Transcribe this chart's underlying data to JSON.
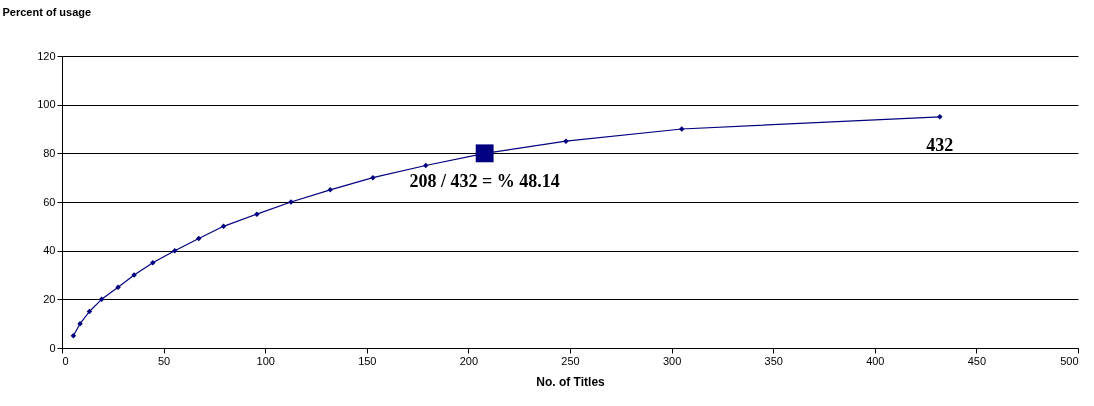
{
  "chart_data": {
    "type": "line",
    "xlabel": "No. of Titles",
    "ylabel": "Percent of usage",
    "series": [
      {
        "color": "#000080",
        "marker": "diamond",
        "x": [
          5.6,
          8.9,
          13.5,
          19.5,
          27.6,
          35.5,
          44.7,
          55.5,
          67.3,
          79.5,
          95.9,
          112.7,
          132,
          153,
          179,
          208,
          248,
          305,
          432
        ],
        "values": [
          5,
          10,
          15,
          20,
          25,
          30,
          35,
          40,
          45,
          50,
          55,
          60,
          65,
          70,
          75,
          80,
          85,
          90,
          95
        ]
      },
      {
        "type": "scatter",
        "color": "#000080",
        "marker": "square",
        "x": [
          208
        ],
        "values": [
          80
        ]
      }
    ],
    "xlim": [
      0,
      500
    ],
    "xticks": [
      0,
      50,
      100,
      150,
      200,
      250,
      300,
      350,
      400,
      450,
      500
    ],
    "ylim": [
      0,
      120
    ],
    "yticks": [
      0,
      20,
      40,
      60,
      80,
      100,
      120
    ],
    "grid": "y",
    "annotations": [
      {
        "text": "208 / 432 = % 48.14",
        "x": 208,
        "y": 80
      },
      {
        "text": "432",
        "x": 432,
        "y": 95
      }
    ]
  }
}
